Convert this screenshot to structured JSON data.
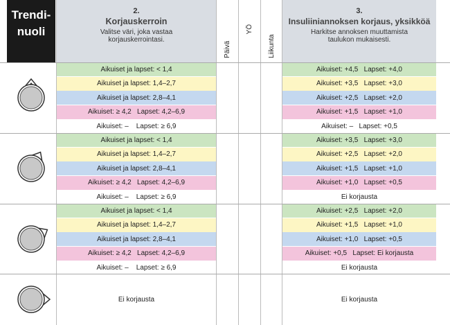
{
  "header": {
    "trend": [
      "Trendi-",
      "nuoli"
    ],
    "correction": {
      "number": "2.",
      "title": "Korjauskerroin",
      "subtitle": [
        "Valitse väri, joka vastaa",
        "korjauskerrointasi."
      ]
    },
    "columns": [
      "Päivä",
      "YÖ",
      "Liikunta"
    ],
    "insulin": {
      "number": "3.",
      "title": "Insuliiniannoksen korjaus, yksikköä",
      "subtitle": [
        "Harkitse annoksen muuttamista",
        "taulukon mukaisesti."
      ]
    }
  },
  "groups": [
    {
      "correction": [
        "Aikuiset ja lapset: < 1,4",
        "Aikuiset ja lapset: 1,4–2,7",
        "Aikuiset ja lapset: 2,8–4,1",
        "Aikuiset: ≥ 4,2   Lapset: 4,2–6,9",
        "Aikuiset: –    Lapset: ≥ 6,9"
      ],
      "insulin": [
        "Aikuiset: +4,5   Lapset: +4,0",
        "Aikuiset: +3,5   Lapset: +3,0",
        "Aikuiset: +2,5   Lapset: +2,0",
        "Aikuiset: +1,5   Lapset: +1,0",
        "Aikuiset: –   Lapset: +0,5"
      ]
    },
    {
      "correction": [
        "Aikuiset ja lapset: < 1,4",
        "Aikuiset ja lapset: 1,4–2,7",
        "Aikuiset ja lapset: 2,8–4,1",
        "Aikuiset: ≥ 4,2   Lapset: 4,2–6,9",
        "Aikuiset: –    Lapset: ≥ 6,9"
      ],
      "insulin": [
        "Aikuiset: +3,5   Lapset: +3,0",
        "Aikuiset: +2,5   Lapset: +2,0",
        "Aikuiset: +1,5   Lapset: +1,0",
        "Aikuiset: +1,0   Lapset: +0,5",
        "Ei korjausta"
      ]
    },
    {
      "correction": [
        "Aikuiset ja lapset: < 1,4",
        "Aikuiset ja lapset: 1,4–2,7",
        "Aikuiset ja lapset: 2,8–4,1",
        "Aikuiset: ≥ 4,2   Lapset: 4,2–6,9",
        "Aikuiset: –    Lapset: ≥ 6,9"
      ],
      "insulin": [
        "Aikuiset: +2,5   Lapset: +2,0",
        "Aikuiset: +1,5   Lapset: +1,0",
        "Aikuiset: +1,0   Lapset: +0,5",
        "Aikuiset: +0,5   Lapset: Ei korjausta",
        "Ei korjausta"
      ]
    },
    {
      "correction": [
        "Ei korjausta"
      ],
      "insulin": [
        "Ei korjausta"
      ]
    }
  ]
}
